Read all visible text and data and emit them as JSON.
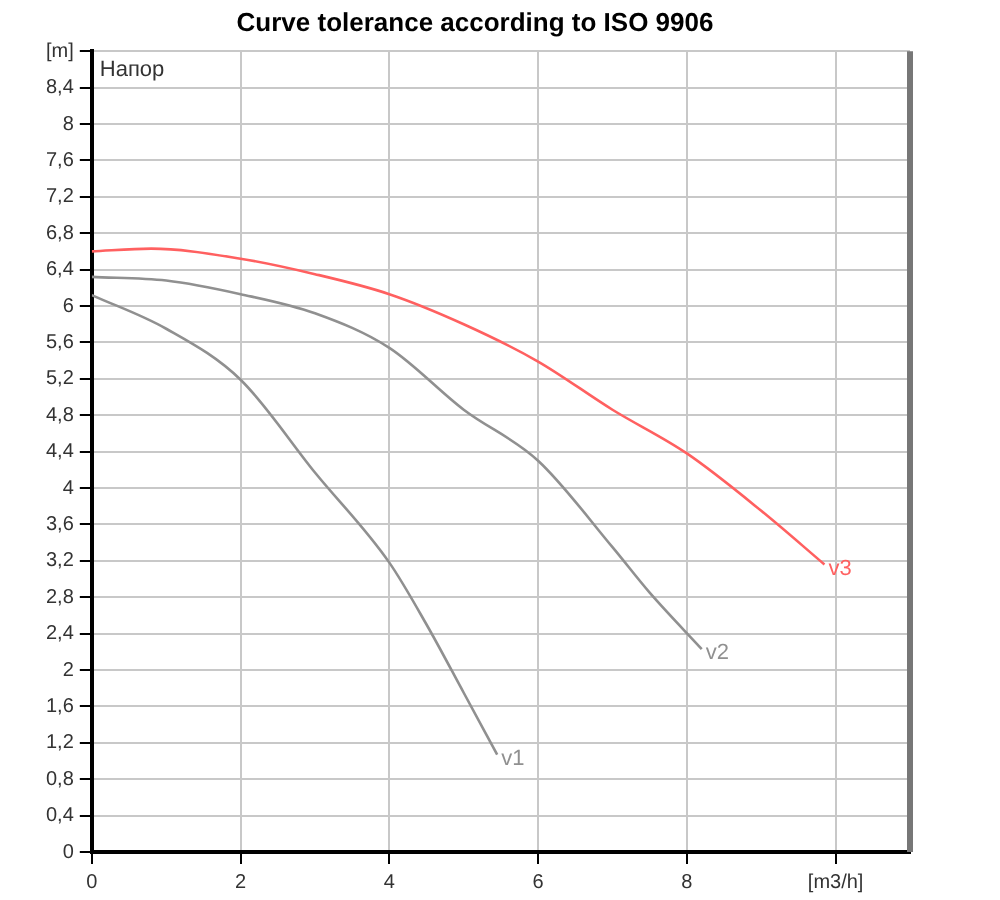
{
  "chart_data": {
    "type": "line",
    "title": "Curve tolerance according to ISO 9906",
    "ylabel": "Напор",
    "xlim": [
      0,
      11
    ],
    "ylim": [
      0,
      8.8
    ],
    "xticks": [
      0,
      2,
      4,
      6,
      8,
      {
        "value": 10,
        "label": "[m3/h]"
      }
    ],
    "yticks": [
      0,
      {
        "value": 0.4,
        "label": "0,4"
      },
      {
        "value": 0.8,
        "label": "0,8"
      },
      {
        "value": 1.2,
        "label": "1,2"
      },
      {
        "value": 1.6,
        "label": "1,6"
      },
      2,
      {
        "value": 2.4,
        "label": "2,4"
      },
      {
        "value": 2.8,
        "label": "2,8"
      },
      {
        "value": 3.2,
        "label": "3,2"
      },
      {
        "value": 3.6,
        "label": "3,6"
      },
      4,
      {
        "value": 4.4,
        "label": "4,4"
      },
      {
        "value": 4.8,
        "label": "4,8"
      },
      {
        "value": 5.2,
        "label": "5,2"
      },
      {
        "value": 5.6,
        "label": "5,6"
      },
      6,
      {
        "value": 6.4,
        "label": "6,4"
      },
      {
        "value": 6.8,
        "label": "6,8"
      },
      {
        "value": 7.2,
        "label": "7,2"
      },
      {
        "value": 7.6,
        "label": "7,6"
      },
      8,
      {
        "value": 8.4,
        "label": "8,4"
      },
      {
        "value": 8.8,
        "label": "[m]"
      }
    ],
    "grid": true,
    "legend": false,
    "marker": "none",
    "line_style": "solid",
    "series": [
      {
        "name": "v1",
        "color": "#909090",
        "x": [
          0,
          1,
          2,
          3,
          4,
          4.5,
          5,
          5.45
        ],
        "values": [
          6.12,
          5.75,
          5.19,
          4.17,
          3.18,
          2.5,
          1.75,
          1.07
        ]
      },
      {
        "name": "v2",
        "color": "#909090",
        "x": [
          0,
          1,
          2,
          3,
          4,
          5,
          6,
          7,
          7.5,
          8.2
        ],
        "values": [
          6.32,
          6.28,
          6.13,
          5.92,
          5.54,
          4.86,
          4.3,
          3.35,
          2.85,
          2.23
        ]
      },
      {
        "name": "v3",
        "color": "#ff6060",
        "x": [
          0,
          0.8,
          2,
          3,
          4,
          5,
          6,
          7,
          8,
          9,
          9.85
        ],
        "values": [
          6.6,
          6.63,
          6.52,
          6.35,
          6.13,
          5.8,
          5.39,
          4.86,
          4.38,
          3.75,
          3.16
        ]
      }
    ]
  }
}
